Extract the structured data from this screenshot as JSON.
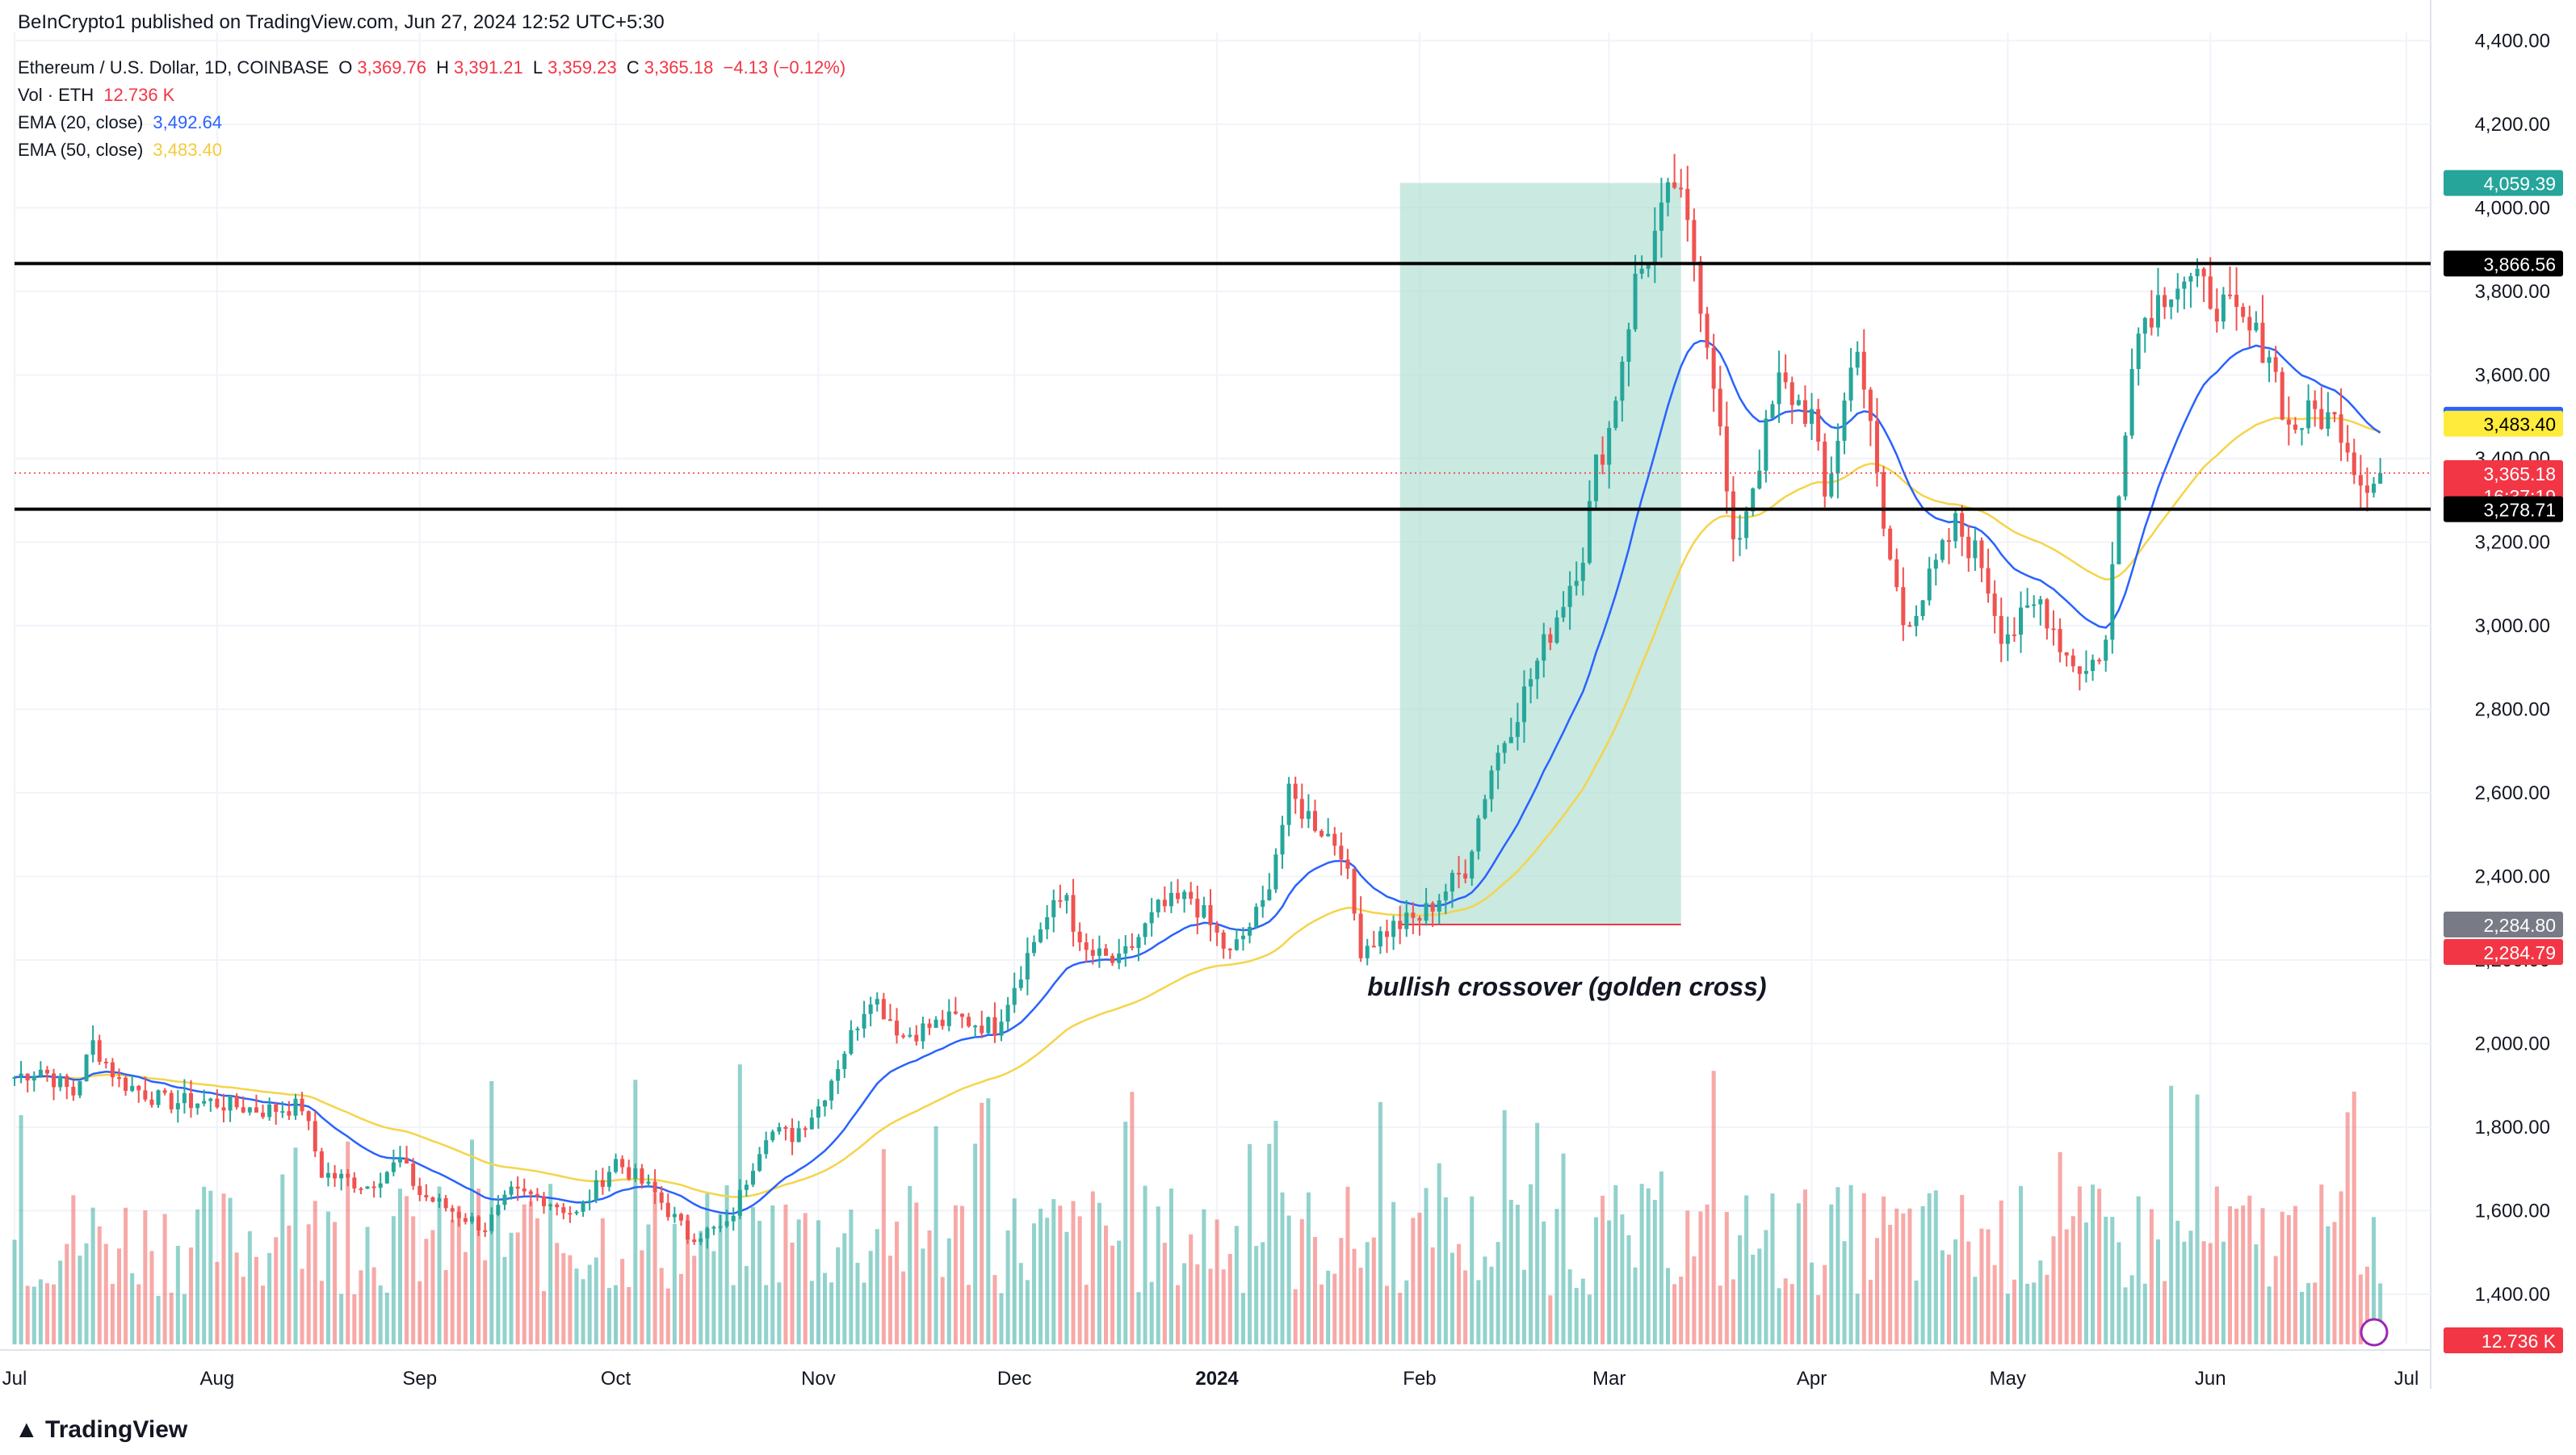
{
  "header": {
    "published": "BeInCrypto1 published on TradingView.com, Jun 27, 2024 12:52 UTC+5:30",
    "symbol": "Ethereum / U.S. Dollar, 1D, COINBASE",
    "open_label": "O",
    "open": "3,369.76",
    "high_label": "H",
    "high": "3,391.21",
    "low_label": "L",
    "low": "3,359.23",
    "close_label": "C",
    "close": "3,365.18",
    "change": "−4.13 (−0.12%)",
    "vol_label": "Vol · ETH",
    "vol": "12.736 K",
    "ema20_label": "EMA (20, close)",
    "ema20": "3,492.64",
    "ema50_label": "EMA (50, close)",
    "ema50": "3,483.40"
  },
  "footer": {
    "logo_text": "TradingView"
  },
  "colors": {
    "up": "#26a69a",
    "down": "#ef5350",
    "ema20": "#2962ff",
    "ema50": "#f5d44a",
    "highlight": "#b2dfd4",
    "level": "#000000",
    "grid": "#f0f3fa"
  },
  "chart_data": {
    "type": "candlestick",
    "y_axis": {
      "min": 1280,
      "max": 4420,
      "ticks": [
        1400,
        1600,
        1800,
        2000,
        2200,
        2400,
        2600,
        2800,
        3000,
        3200,
        3400,
        3600,
        3800,
        4000,
        4200,
        4400
      ],
      "tick_labels": [
        "1,400.00",
        "1,600.00",
        "1,800.00",
        "2,000.00",
        "2,200.00",
        "2,400.00",
        "2,600.00",
        "2,800.00",
        "3,000.00",
        "3,200.00",
        "3,400.00",
        "3,600.00",
        "3,800.00",
        "4,000.00",
        "4,200.00",
        "4,400.00"
      ]
    },
    "x_axis": {
      "start": "2023-07-01",
      "end": "2024-07-01",
      "ticks": [
        {
          "date": "2023-07-01",
          "label": "Jul"
        },
        {
          "date": "2023-08-01",
          "label": "Aug"
        },
        {
          "date": "2023-09-01",
          "label": "Sep"
        },
        {
          "date": "2023-10-01",
          "label": "Oct"
        },
        {
          "date": "2023-11-01",
          "label": "Nov"
        },
        {
          "date": "2023-12-01",
          "label": "Dec"
        },
        {
          "date": "2024-01-01",
          "label": "2024"
        },
        {
          "date": "2024-02-01",
          "label": "Feb"
        },
        {
          "date": "2024-03-01",
          "label": "Mar"
        },
        {
          "date": "2024-04-01",
          "label": "Apr"
        },
        {
          "date": "2024-05-01",
          "label": "May"
        },
        {
          "date": "2024-06-01",
          "label": "Jun"
        },
        {
          "date": "2024-07-01",
          "label": "Jul"
        }
      ]
    },
    "close_series": [
      [
        "2023-07-01",
        1920
      ],
      [
        "2023-07-05",
        1940
      ],
      [
        "2023-07-10",
        1880
      ],
      [
        "2023-07-13",
        2000
      ],
      [
        "2023-07-17",
        1910
      ],
      [
        "2023-07-24",
        1860
      ],
      [
        "2023-07-31",
        1860
      ],
      [
        "2023-08-08",
        1840
      ],
      [
        "2023-08-14",
        1850
      ],
      [
        "2023-08-17",
        1690
      ],
      [
        "2023-08-24",
        1660
      ],
      [
        "2023-08-29",
        1720
      ],
      [
        "2023-09-01",
        1640
      ],
      [
        "2023-09-11",
        1560
      ],
      [
        "2023-09-15",
        1640
      ],
      [
        "2023-09-20",
        1630
      ],
      [
        "2023-09-25",
        1590
      ],
      [
        "2023-10-01",
        1720
      ],
      [
        "2023-10-07",
        1640
      ],
      [
        "2023-10-12",
        1540
      ],
      [
        "2023-10-18",
        1560
      ],
      [
        "2023-10-24",
        1790
      ],
      [
        "2023-10-28",
        1780
      ],
      [
        "2023-11-01",
        1850
      ],
      [
        "2023-11-09",
        2120
      ],
      [
        "2023-11-14",
        2020
      ],
      [
        "2023-11-22",
        2060
      ],
      [
        "2023-11-28",
        2040
      ],
      [
        "2023-12-05",
        2280
      ],
      [
        "2023-12-09",
        2360
      ],
      [
        "2023-12-11",
        2220
      ],
      [
        "2023-12-17",
        2190
      ],
      [
        "2023-12-23",
        2320
      ],
      [
        "2023-12-28",
        2350
      ],
      [
        "2024-01-03",
        2210
      ],
      [
        "2024-01-08",
        2330
      ],
      [
        "2024-01-12",
        2590
      ],
      [
        "2024-01-16",
        2530
      ],
      [
        "2024-01-20",
        2470
      ],
      [
        "2024-01-23",
        2230
      ],
      [
        "2024-01-28",
        2280
      ],
      [
        "2024-02-01",
        2300
      ],
      [
        "2024-02-08",
        2420
      ],
      [
        "2024-02-12",
        2660
      ],
      [
        "2024-02-16",
        2800
      ],
      [
        "2024-02-20",
        2950
      ],
      [
        "2024-02-26",
        3180
      ],
      [
        "2024-02-28",
        3380
      ],
      [
        "2024-03-01",
        3470
      ],
      [
        "2024-03-05",
        3820
      ],
      [
        "2024-03-07",
        3890
      ],
      [
        "2024-03-11",
        4060
      ],
      [
        "2024-03-14",
        3880
      ],
      [
        "2024-03-17",
        3600
      ],
      [
        "2024-03-20",
        3170
      ],
      [
        "2024-03-24",
        3400
      ],
      [
        "2024-03-27",
        3580
      ],
      [
        "2024-04-01",
        3500
      ],
      [
        "2024-04-03",
        3300
      ],
      [
        "2024-04-08",
        3690
      ],
      [
        "2024-04-12",
        3230
      ],
      [
        "2024-04-15",
        3010
      ],
      [
        "2024-04-18",
        3070
      ],
      [
        "2024-04-23",
        3240
      ],
      [
        "2024-04-27",
        3150
      ],
      [
        "2024-04-30",
        2990
      ],
      [
        "2024-05-02",
        2990
      ],
      [
        "2024-05-06",
        3060
      ],
      [
        "2024-05-10",
        2930
      ],
      [
        "2024-05-13",
        2890
      ],
      [
        "2024-05-16",
        2960
      ],
      [
        "2024-05-20",
        3660
      ],
      [
        "2024-05-22",
        3740
      ],
      [
        "2024-05-26",
        3820
      ],
      [
        "2024-05-28",
        3830
      ],
      [
        "2024-06-01",
        3790
      ],
      [
        "2024-06-07",
        3700
      ],
      [
        "2024-06-10",
        3660
      ],
      [
        "2024-06-13",
        3470
      ],
      [
        "2024-06-17",
        3510
      ],
      [
        "2024-06-21",
        3480
      ],
      [
        "2024-06-24",
        3350
      ],
      [
        "2024-06-27",
        3365
      ]
    ],
    "volume_series": [],
    "levels": [
      {
        "value": 3866.56,
        "label": "3,866.56"
      },
      {
        "value": 3278.71,
        "label": "3,278.71"
      }
    ],
    "highlight_box": {
      "start": "2024-01-29",
      "end": "2024-03-12",
      "low": 2284.8,
      "high": 4059.39
    },
    "annotation": {
      "text": "bullish crossover (golden cross)",
      "date": "2024-01-24",
      "value": 2115
    },
    "price_badges": [
      {
        "value": 4059.39,
        "label": "4,059.39",
        "color": "#26a69a"
      },
      {
        "value": 3866.56,
        "label": "3,866.56",
        "color": "#000000"
      },
      {
        "value": 3492.64,
        "label": "3,492.64",
        "color": "#2962ff"
      },
      {
        "value": 3483.4,
        "label": "3,483.40",
        "color": "#ffeb3b",
        "text_color": "#000000"
      },
      {
        "value": 3365.18,
        "label": "3,365.18",
        "sub": "16:37:19",
        "color": "#f23645"
      },
      {
        "value": 3278.71,
        "label": "3,278.71",
        "color": "#000000"
      },
      {
        "value": 2284.8,
        "label": "2,284.80",
        "color": "#787b86"
      },
      {
        "value": 2284.79,
        "label": "2,284.79",
        "color": "#f23645",
        "offset": 1
      },
      {
        "value": 0,
        "label": "12.736 K",
        "color": "#f23645",
        "volume": true
      }
    ]
  }
}
